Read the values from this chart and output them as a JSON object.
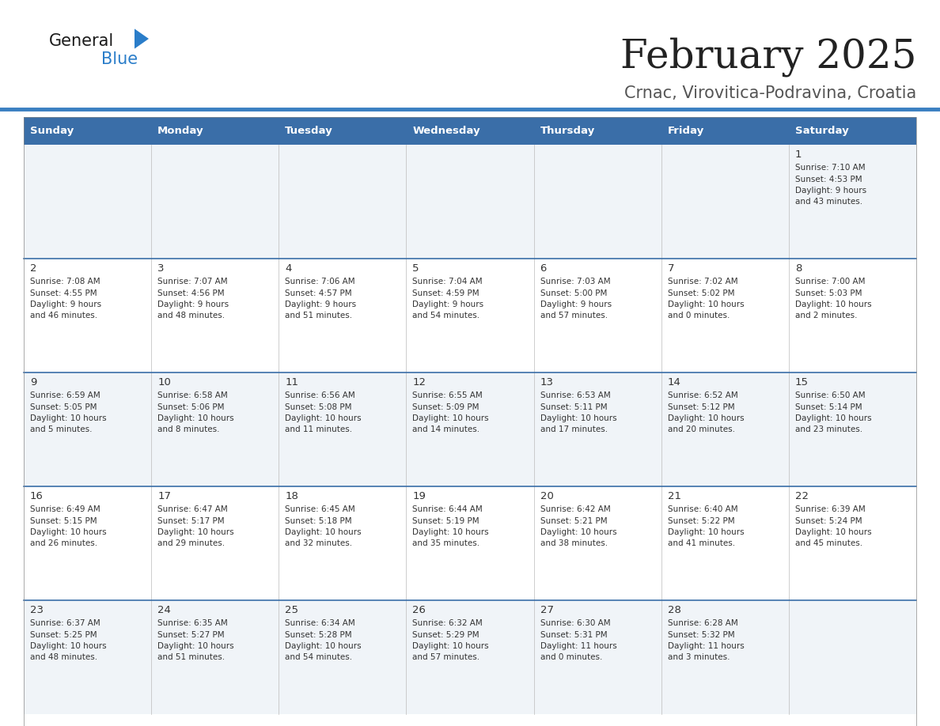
{
  "title": "February 2025",
  "subtitle": "Crnac, Virovitica-Podravina, Croatia",
  "header_bg": "#3a6ea8",
  "header_text_color": "#ffffff",
  "days_of_week": [
    "Sunday",
    "Monday",
    "Tuesday",
    "Wednesday",
    "Thursday",
    "Friday",
    "Saturday"
  ],
  "row_bg_even": "#f0f4f8",
  "row_bg_odd": "#ffffff",
  "cell_text_color": "#333333",
  "grid_line_color": "#3a6ea8",
  "title_color": "#222222",
  "subtitle_color": "#555555",
  "logo_general_color": "#1a1a1a",
  "logo_blue_color": "#2a7dc9",
  "calendar_data": [
    [
      {
        "day": null,
        "info": null
      },
      {
        "day": null,
        "info": null
      },
      {
        "day": null,
        "info": null
      },
      {
        "day": null,
        "info": null
      },
      {
        "day": null,
        "info": null
      },
      {
        "day": null,
        "info": null
      },
      {
        "day": 1,
        "info": "Sunrise: 7:10 AM\nSunset: 4:53 PM\nDaylight: 9 hours\nand 43 minutes."
      }
    ],
    [
      {
        "day": 2,
        "info": "Sunrise: 7:08 AM\nSunset: 4:55 PM\nDaylight: 9 hours\nand 46 minutes."
      },
      {
        "day": 3,
        "info": "Sunrise: 7:07 AM\nSunset: 4:56 PM\nDaylight: 9 hours\nand 48 minutes."
      },
      {
        "day": 4,
        "info": "Sunrise: 7:06 AM\nSunset: 4:57 PM\nDaylight: 9 hours\nand 51 minutes."
      },
      {
        "day": 5,
        "info": "Sunrise: 7:04 AM\nSunset: 4:59 PM\nDaylight: 9 hours\nand 54 minutes."
      },
      {
        "day": 6,
        "info": "Sunrise: 7:03 AM\nSunset: 5:00 PM\nDaylight: 9 hours\nand 57 minutes."
      },
      {
        "day": 7,
        "info": "Sunrise: 7:02 AM\nSunset: 5:02 PM\nDaylight: 10 hours\nand 0 minutes."
      },
      {
        "day": 8,
        "info": "Sunrise: 7:00 AM\nSunset: 5:03 PM\nDaylight: 10 hours\nand 2 minutes."
      }
    ],
    [
      {
        "day": 9,
        "info": "Sunrise: 6:59 AM\nSunset: 5:05 PM\nDaylight: 10 hours\nand 5 minutes."
      },
      {
        "day": 10,
        "info": "Sunrise: 6:58 AM\nSunset: 5:06 PM\nDaylight: 10 hours\nand 8 minutes."
      },
      {
        "day": 11,
        "info": "Sunrise: 6:56 AM\nSunset: 5:08 PM\nDaylight: 10 hours\nand 11 minutes."
      },
      {
        "day": 12,
        "info": "Sunrise: 6:55 AM\nSunset: 5:09 PM\nDaylight: 10 hours\nand 14 minutes."
      },
      {
        "day": 13,
        "info": "Sunrise: 6:53 AM\nSunset: 5:11 PM\nDaylight: 10 hours\nand 17 minutes."
      },
      {
        "day": 14,
        "info": "Sunrise: 6:52 AM\nSunset: 5:12 PM\nDaylight: 10 hours\nand 20 minutes."
      },
      {
        "day": 15,
        "info": "Sunrise: 6:50 AM\nSunset: 5:14 PM\nDaylight: 10 hours\nand 23 minutes."
      }
    ],
    [
      {
        "day": 16,
        "info": "Sunrise: 6:49 AM\nSunset: 5:15 PM\nDaylight: 10 hours\nand 26 minutes."
      },
      {
        "day": 17,
        "info": "Sunrise: 6:47 AM\nSunset: 5:17 PM\nDaylight: 10 hours\nand 29 minutes."
      },
      {
        "day": 18,
        "info": "Sunrise: 6:45 AM\nSunset: 5:18 PM\nDaylight: 10 hours\nand 32 minutes."
      },
      {
        "day": 19,
        "info": "Sunrise: 6:44 AM\nSunset: 5:19 PM\nDaylight: 10 hours\nand 35 minutes."
      },
      {
        "day": 20,
        "info": "Sunrise: 6:42 AM\nSunset: 5:21 PM\nDaylight: 10 hours\nand 38 minutes."
      },
      {
        "day": 21,
        "info": "Sunrise: 6:40 AM\nSunset: 5:22 PM\nDaylight: 10 hours\nand 41 minutes."
      },
      {
        "day": 22,
        "info": "Sunrise: 6:39 AM\nSunset: 5:24 PM\nDaylight: 10 hours\nand 45 minutes."
      }
    ],
    [
      {
        "day": 23,
        "info": "Sunrise: 6:37 AM\nSunset: 5:25 PM\nDaylight: 10 hours\nand 48 minutes."
      },
      {
        "day": 24,
        "info": "Sunrise: 6:35 AM\nSunset: 5:27 PM\nDaylight: 10 hours\nand 51 minutes."
      },
      {
        "day": 25,
        "info": "Sunrise: 6:34 AM\nSunset: 5:28 PM\nDaylight: 10 hours\nand 54 minutes."
      },
      {
        "day": 26,
        "info": "Sunrise: 6:32 AM\nSunset: 5:29 PM\nDaylight: 10 hours\nand 57 minutes."
      },
      {
        "day": 27,
        "info": "Sunrise: 6:30 AM\nSunset: 5:31 PM\nDaylight: 11 hours\nand 0 minutes."
      },
      {
        "day": 28,
        "info": "Sunrise: 6:28 AM\nSunset: 5:32 PM\nDaylight: 11 hours\nand 3 minutes."
      },
      {
        "day": null,
        "info": null
      }
    ]
  ]
}
